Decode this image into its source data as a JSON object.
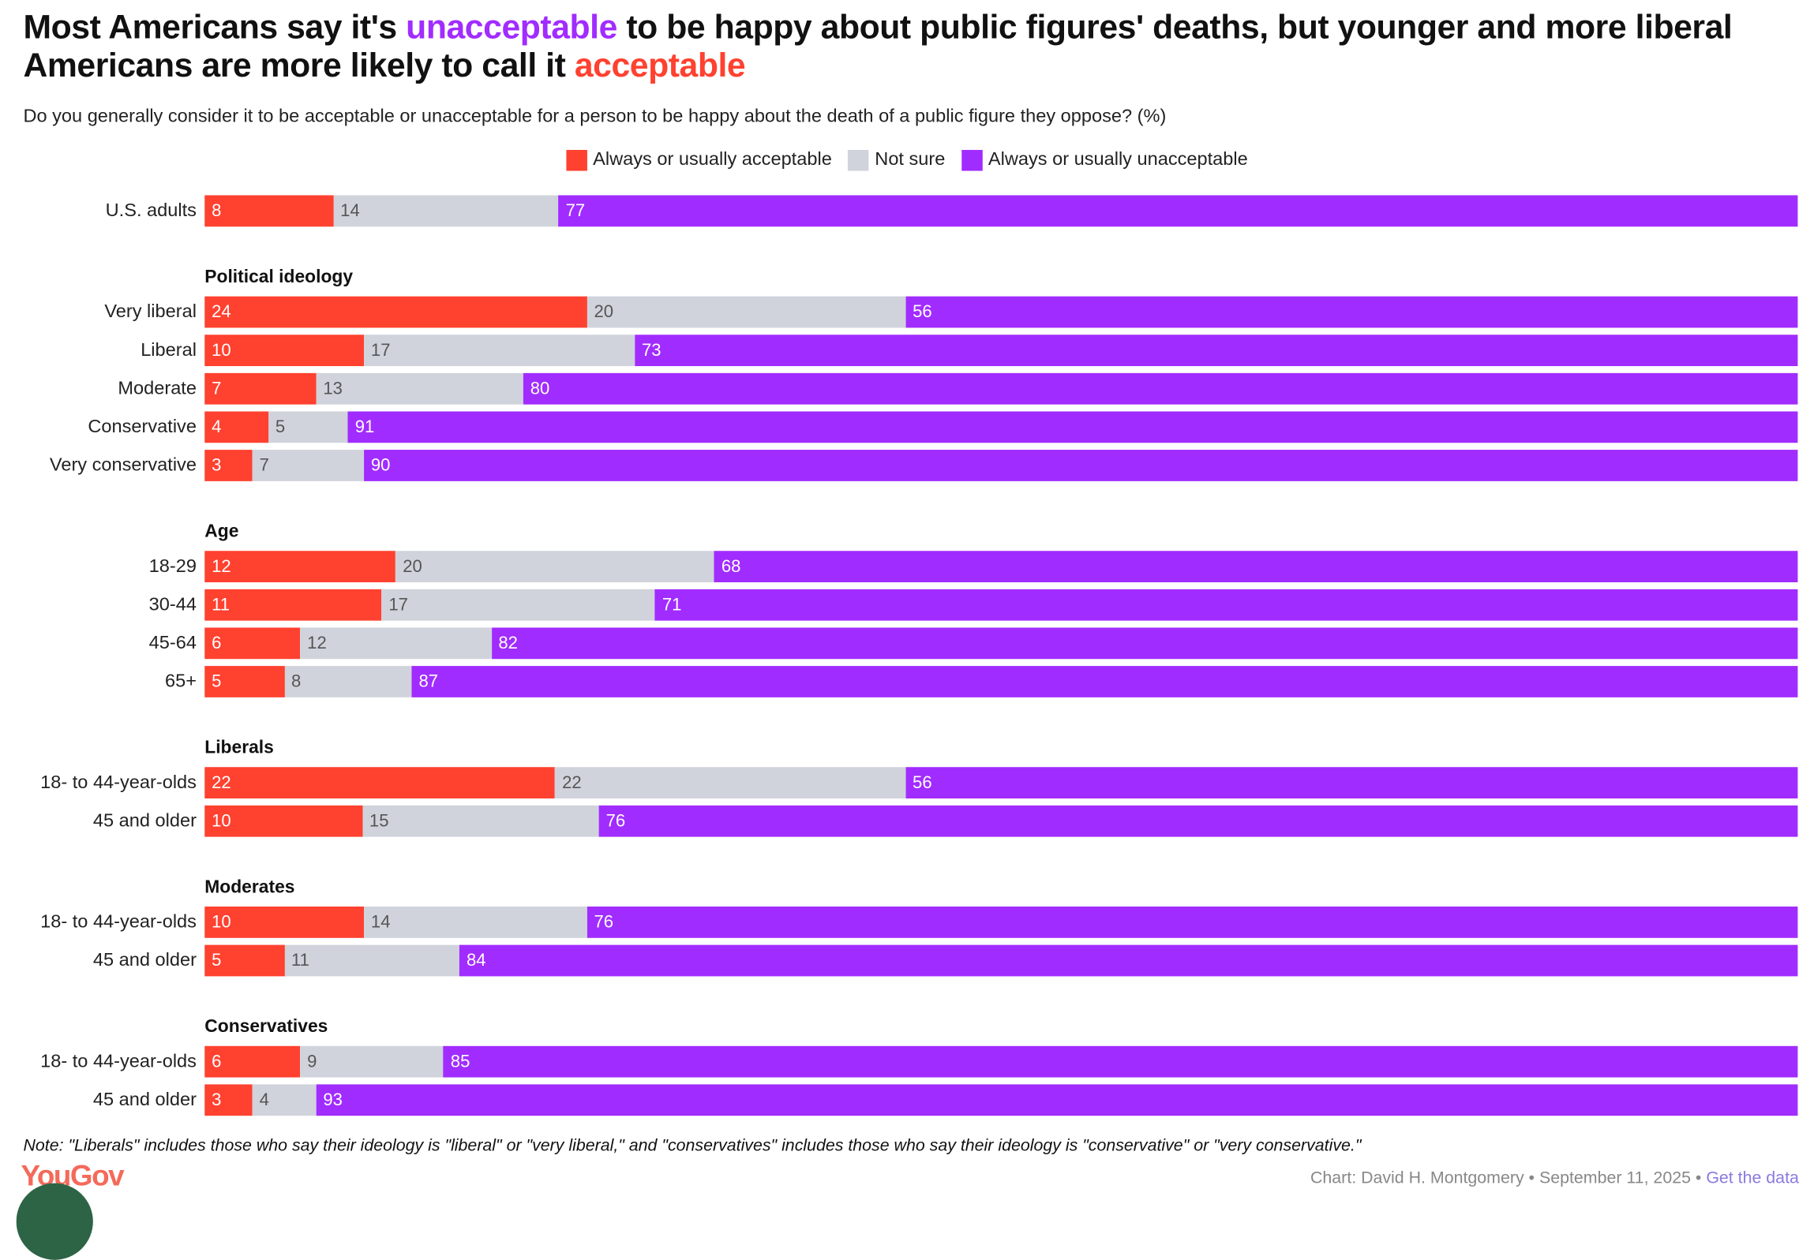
{
  "title": {
    "part1": "Most Americans say it's ",
    "highlight1": "unacceptable",
    "part2": " to be happy about public figures' deaths, but younger and more liberal Americans are more likely to call it ",
    "highlight2": "acceptable"
  },
  "subtitle": "Do you generally consider it to be acceptable or unacceptable for a person to be happy about the death of a public figure they oppose? (%)",
  "colors": {
    "acceptable": "#ff4130",
    "not_sure": "#d0d3dc",
    "unacceptable": "#a12cff"
  },
  "chart_data": {
    "type": "bar",
    "stacked": true,
    "orientation": "horizontal",
    "legend_position": "top",
    "series_names": [
      "Always or usually acceptable",
      "Not sure",
      "Always or usually unacceptable"
    ],
    "groups": [
      {
        "name": "",
        "rows": [
          {
            "label": "U.S. adults",
            "values": [
              8,
              14,
              77
            ]
          }
        ]
      },
      {
        "name": "Political ideology",
        "rows": [
          {
            "label": "Very liberal",
            "values": [
              24,
              20,
              56
            ]
          },
          {
            "label": "Liberal",
            "values": [
              10,
              17,
              73
            ]
          },
          {
            "label": "Moderate",
            "values": [
              7,
              13,
              80
            ]
          },
          {
            "label": "Conservative",
            "values": [
              4,
              5,
              91
            ]
          },
          {
            "label": "Very conservative",
            "values": [
              3,
              7,
              90
            ]
          }
        ]
      },
      {
        "name": "Age",
        "rows": [
          {
            "label": "18-29",
            "values": [
              12,
              20,
              68
            ]
          },
          {
            "label": "30-44",
            "values": [
              11,
              17,
              71
            ]
          },
          {
            "label": "45-64",
            "values": [
              6,
              12,
              82
            ]
          },
          {
            "label": "65+",
            "values": [
              5,
              8,
              87
            ]
          }
        ]
      },
      {
        "name": "Liberals",
        "rows": [
          {
            "label": "18- to 44-year-olds",
            "values": [
              22,
              22,
              56
            ]
          },
          {
            "label": "45 and older",
            "values": [
              10,
              15,
              76
            ]
          }
        ]
      },
      {
        "name": "Moderates",
        "rows": [
          {
            "label": "18- to 44-year-olds",
            "values": [
              10,
              14,
              76
            ]
          },
          {
            "label": "45 and older",
            "values": [
              5,
              11,
              84
            ]
          }
        ]
      },
      {
        "name": "Conservatives",
        "rows": [
          {
            "label": "18- to 44-year-olds",
            "values": [
              6,
              9,
              85
            ]
          },
          {
            "label": "45 and older",
            "values": [
              3,
              4,
              93
            ]
          }
        ]
      }
    ]
  },
  "note": "Note: \"Liberals\" includes those who say their ideology is \"liberal\" or \"very liberal,\" and \"conservatives\" includes those who say their ideology is \"conservative\" or \"very conservative.\"",
  "credit": {
    "text": "Chart: David H. Montgomery • September 11, 2025 • ",
    "link": "Get the data"
  },
  "logo": "YouGov"
}
